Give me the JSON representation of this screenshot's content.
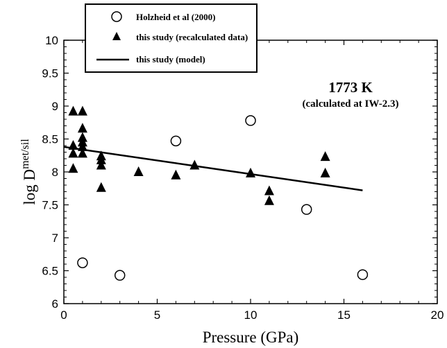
{
  "chart_data": {
    "type": "scatter",
    "xlabel": "Pressure (GPa)",
    "ylabel_main": "log D",
    "ylabel_sup": "met/sil",
    "xlim": [
      0,
      20
    ],
    "ylim": [
      6,
      10
    ],
    "xticks": [
      0,
      5,
      10,
      15,
      20
    ],
    "yticks": [
      6,
      6.5,
      7,
      7.5,
      8,
      8.5,
      9,
      9.5,
      10
    ],
    "xtick_labels": [
      "0",
      "5",
      "10",
      "15",
      "20"
    ],
    "ytick_labels": [
      "6",
      "6.5",
      "7",
      "7.5",
      "8",
      "8.5",
      "9",
      "9.5",
      "10"
    ],
    "grid": false,
    "legend_position": "top-left",
    "annotation": {
      "main": "1773 K",
      "sub": "(calculated at IW-2.3)"
    },
    "series": [
      {
        "name": "Holzheid et al (2000)",
        "marker": "open-circle",
        "points": [
          {
            "x": 1,
            "y": 6.62
          },
          {
            "x": 3,
            "y": 6.43
          },
          {
            "x": 6,
            "y": 8.47
          },
          {
            "x": 10,
            "y": 8.78
          },
          {
            "x": 13,
            "y": 7.43
          },
          {
            "x": 16,
            "y": 6.44
          }
        ]
      },
      {
        "name": "this study (recalculated data)",
        "marker": "filled-triangle",
        "points": [
          {
            "x": 0.5,
            "y": 8.92
          },
          {
            "x": 0.5,
            "y": 8.4
          },
          {
            "x": 0.5,
            "y": 8.28
          },
          {
            "x": 0.5,
            "y": 8.05
          },
          {
            "x": 1.0,
            "y": 8.92
          },
          {
            "x": 1.0,
            "y": 8.66
          },
          {
            "x": 1.0,
            "y": 8.52
          },
          {
            "x": 1.0,
            "y": 8.45
          },
          {
            "x": 1.0,
            "y": 8.38
          },
          {
            "x": 1.0,
            "y": 8.28
          },
          {
            "x": 2.0,
            "y": 8.24
          },
          {
            "x": 2.0,
            "y": 8.18
          },
          {
            "x": 2.0,
            "y": 8.1
          },
          {
            "x": 2.0,
            "y": 7.76
          },
          {
            "x": 4.0,
            "y": 8.0
          },
          {
            "x": 6.0,
            "y": 7.95
          },
          {
            "x": 7.0,
            "y": 8.1
          },
          {
            "x": 10.0,
            "y": 7.98
          },
          {
            "x": 11.0,
            "y": 7.71
          },
          {
            "x": 11.0,
            "y": 7.56
          },
          {
            "x": 14.0,
            "y": 8.23
          },
          {
            "x": 14.0,
            "y": 7.98
          }
        ]
      },
      {
        "name": "this study (model)",
        "marker": "line",
        "points": [
          {
            "x": 0,
            "y": 8.38
          },
          {
            "x": 16,
            "y": 7.72
          }
        ]
      }
    ]
  }
}
